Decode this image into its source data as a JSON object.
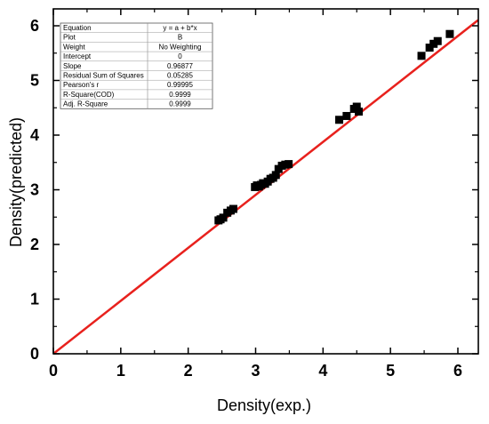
{
  "chart_data": {
    "type": "scatter",
    "xlabel": "Density(exp.)",
    "ylabel": "Density(predicted)",
    "xlim": [
      0,
      6.3
    ],
    "ylim": [
      0,
      6.25
    ],
    "x_ticks": [
      "0",
      "1",
      "2",
      "3",
      "4",
      "5",
      "6"
    ],
    "y_ticks": [
      "0",
      "1",
      "2",
      "3",
      "4",
      "5",
      "6"
    ],
    "grid": false,
    "fit_line": {
      "intercept": 0,
      "slope": 0.96877,
      "color": "#e8211d"
    },
    "marker_color": "#000000",
    "points": [
      {
        "x": 2.45,
        "y": 2.44
      },
      {
        "x": 2.48,
        "y": 2.46
      },
      {
        "x": 2.52,
        "y": 2.49
      },
      {
        "x": 2.58,
        "y": 2.58
      },
      {
        "x": 2.63,
        "y": 2.62
      },
      {
        "x": 2.67,
        "y": 2.65
      },
      {
        "x": 2.99,
        "y": 3.05
      },
      {
        "x": 3.02,
        "y": 3.08
      },
      {
        "x": 3.05,
        "y": 3.06
      },
      {
        "x": 3.08,
        "y": 3.09
      },
      {
        "x": 3.11,
        "y": 3.12
      },
      {
        "x": 3.14,
        "y": 3.11
      },
      {
        "x": 3.18,
        "y": 3.15
      },
      {
        "x": 3.22,
        "y": 3.2
      },
      {
        "x": 3.26,
        "y": 3.22
      },
      {
        "x": 3.3,
        "y": 3.27
      },
      {
        "x": 3.34,
        "y": 3.38
      },
      {
        "x": 3.39,
        "y": 3.44
      },
      {
        "x": 3.44,
        "y": 3.46
      },
      {
        "x": 3.49,
        "y": 3.47
      },
      {
        "x": 4.24,
        "y": 4.28
      },
      {
        "x": 4.35,
        "y": 4.35
      },
      {
        "x": 4.46,
        "y": 4.48
      },
      {
        "x": 4.5,
        "y": 4.52
      },
      {
        "x": 4.53,
        "y": 4.43
      },
      {
        "x": 5.46,
        "y": 5.45
      },
      {
        "x": 5.58,
        "y": 5.6
      },
      {
        "x": 5.64,
        "y": 5.67
      },
      {
        "x": 5.7,
        "y": 5.72
      },
      {
        "x": 5.88,
        "y": 5.85
      }
    ]
  },
  "stats_table": {
    "rows": [
      {
        "label": "Equation",
        "value": "y = a + b*x"
      },
      {
        "label": "Plot",
        "value": "B"
      },
      {
        "label": "Weight",
        "value": "No Weighting"
      },
      {
        "label": "Intercept",
        "value": "0"
      },
      {
        "label": "Slope",
        "value": "0.96877"
      },
      {
        "label": "Residual Sum of Squares",
        "value": "0.05285"
      },
      {
        "label": "Pearson's r",
        "value": "0.99995"
      },
      {
        "label": "R-Square(COD)",
        "value": "0.9999"
      },
      {
        "label": "Adj. R-Square",
        "value": "0.9999"
      }
    ]
  }
}
